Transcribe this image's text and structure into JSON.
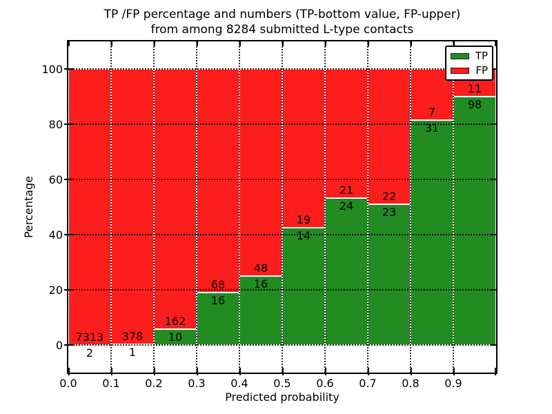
{
  "title": {
    "line1": "TP /FP percentage and numbers (TP-bottom value, FP-upper)",
    "line2": "from among 8284 submitted L-type contacts"
  },
  "axes": {
    "xlabel": "Predicted probability",
    "ylabel": "Percentage"
  },
  "legend": {
    "tp_label": "TP",
    "fp_label": "FP"
  },
  "colors": {
    "tp": "#228b22",
    "fp": "#fc1d1d",
    "grid": "#000000",
    "background": "#ffffff"
  },
  "chart_data": {
    "type": "bar",
    "stacked": true,
    "title": "TP /FP percentage and numbers (TP-bottom value, FP-upper) from among 8284 submitted L-type contacts",
    "xlabel": "Predicted probability",
    "ylabel": "Percentage",
    "total_submitted": 8284,
    "bin_width": 0.1,
    "x_tick_labels": [
      "0.0",
      "0.1",
      "0.2",
      "0.3",
      "0.4",
      "0.5",
      "0.6",
      "0.7",
      "0.8",
      "0.9"
    ],
    "y_ticks": [
      0,
      20,
      40,
      60,
      80,
      100
    ],
    "xlim": [
      0.0,
      1.0
    ],
    "ylim": [
      -10,
      110
    ],
    "grid": true,
    "legend_position": "upper right",
    "series": [
      {
        "name": "TP",
        "color": "#228b22",
        "counts": [
          2,
          1,
          10,
          16,
          16,
          14,
          24,
          23,
          31,
          98
        ],
        "percent_of_bin": [
          0.03,
          0.26,
          5.81,
          19.05,
          25.0,
          42.42,
          53.33,
          51.11,
          81.58,
          89.91
        ]
      },
      {
        "name": "FP",
        "color": "#fc1d1d",
        "counts": [
          7313,
          378,
          162,
          68,
          48,
          19,
          21,
          22,
          7,
          11
        ],
        "percent_of_bin": [
          99.97,
          99.74,
          94.19,
          80.95,
          75.0,
          57.58,
          46.67,
          48.89,
          18.42,
          10.09
        ]
      }
    ]
  }
}
